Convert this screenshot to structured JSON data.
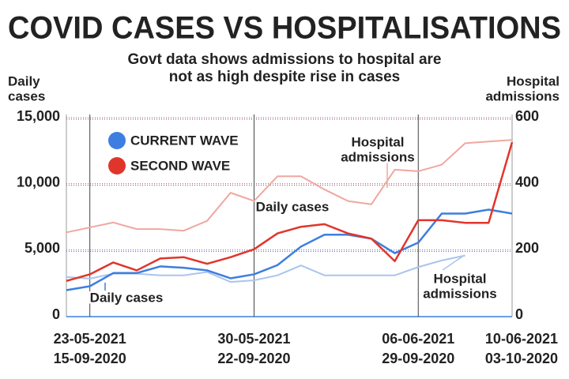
{
  "chart_data": {
    "type": "line",
    "title": "COVID CASES VS HOSPITALISATIONS",
    "subtitle": [
      "Govt data shows admissions to hospital are",
      "not as high despite rise in cases"
    ],
    "y_label": [
      "Daily",
      "cases"
    ],
    "y2_label": [
      "Hospital",
      "admissions"
    ],
    "categories": [
      null,
      "23-05-2021",
      null,
      null,
      null,
      null,
      null,
      null,
      "30-05-2021",
      null,
      null,
      null,
      null,
      null,
      null,
      "06-06-2021",
      null,
      null,
      null,
      "10-06-2021"
    ],
    "categories2": [
      null,
      "15-09-2020",
      null,
      null,
      null,
      null,
      null,
      null,
      "22-09-2020",
      null,
      null,
      null,
      null,
      null,
      null,
      "29-09-2020",
      null,
      null,
      null,
      "03-10-2020"
    ],
    "ylim": [
      0,
      15000
    ],
    "yticks": [
      0,
      {
        "value": 5000,
        "label": "5,000"
      },
      {
        "value": 10000,
        "label": "10,000"
      },
      {
        "value": 15000,
        "label": "15,000"
      }
    ],
    "y2lim": [
      0,
      600
    ],
    "y2ticks": [
      0,
      200,
      400,
      600
    ],
    "grid": true,
    "series": [
      {
        "name": "CURRENT WAVE",
        "color": "#3d7ee0",
        "values": [
          2000,
          2300,
          3300,
          3300,
          3800,
          3700,
          3500,
          2900,
          3200,
          3900,
          5300,
          6200,
          6200,
          5900,
          4800,
          5600,
          7800,
          7800,
          8100,
          7800
        ]
      },
      {
        "name": "SECOND WAVE",
        "color": "#e0352b",
        "values": [
          2700,
          3200,
          4100,
          3500,
          4400,
          4500,
          4000,
          4500,
          5100,
          6300,
          6800,
          7000,
          6300,
          5900,
          4200,
          7300,
          7300,
          7100,
          7100,
          13200
        ]
      },
      {
        "color": "#a9c4ee",
        "axis": "y2",
        "values": [
          120,
          115,
          130,
          130,
          125,
          125,
          135,
          105,
          110,
          125,
          155,
          125,
          125,
          125,
          125,
          150,
          170,
          185,
          null,
          null
        ]
      },
      {
        "color": "#f0a79f",
        "axis": "y2",
        "values": [
          255,
          270,
          285,
          265,
          265,
          260,
          290,
          375,
          350,
          425,
          425,
          385,
          350,
          340,
          445,
          440,
          460,
          525,
          530,
          535
        ]
      }
    ],
    "annotations": [
      {
        "text": [
          "Daily cases"
        ],
        "color": "#3d7ee0"
      },
      {
        "text": [
          "Daily cases"
        ],
        "color": "#e0352b"
      },
      {
        "text": [
          "Hospital",
          "admissions"
        ],
        "color": "#f0a79f"
      },
      {
        "text": [
          "Hospital",
          "admissions"
        ],
        "color": "#a9c4ee"
      }
    ]
  }
}
